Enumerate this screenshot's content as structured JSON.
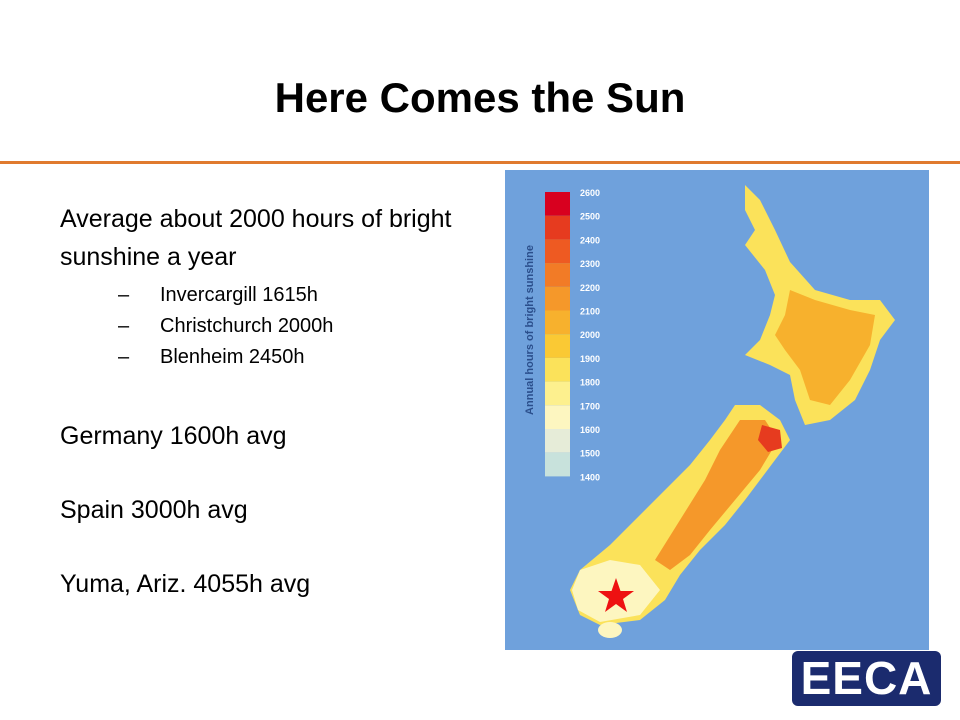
{
  "header": {
    "title": "Here Comes the Sun"
  },
  "body": {
    "intro": "Average about 2000 hours of bright sunshine a year",
    "sub_marker": "–",
    "sub_items": [
      "Invercargill 1615h",
      "Christchurch 2000h",
      "Blenheim 2450h"
    ],
    "items": [
      "Germany 1600h avg",
      "Spain 3000h avg",
      "Yuma, Ariz. 4055h avg"
    ]
  },
  "map": {
    "legend_title": "Annual hours of bright sunshine",
    "legend_labels": [
      2600,
      2500,
      2400,
      2300,
      2200,
      2100,
      2000,
      1900,
      1800,
      1700,
      1600,
      1500,
      1400
    ],
    "legend_colors": [
      "#d8001f",
      "#e63b1f",
      "#ee5a22",
      "#f27b26",
      "#f5982a",
      "#f7b12d",
      "#fac934",
      "#fbe25a",
      "#fdf08e",
      "#fdf6c0",
      "#e6ecd8",
      "#c8e2dc"
    ]
  },
  "logo": {
    "text": "EECA"
  }
}
